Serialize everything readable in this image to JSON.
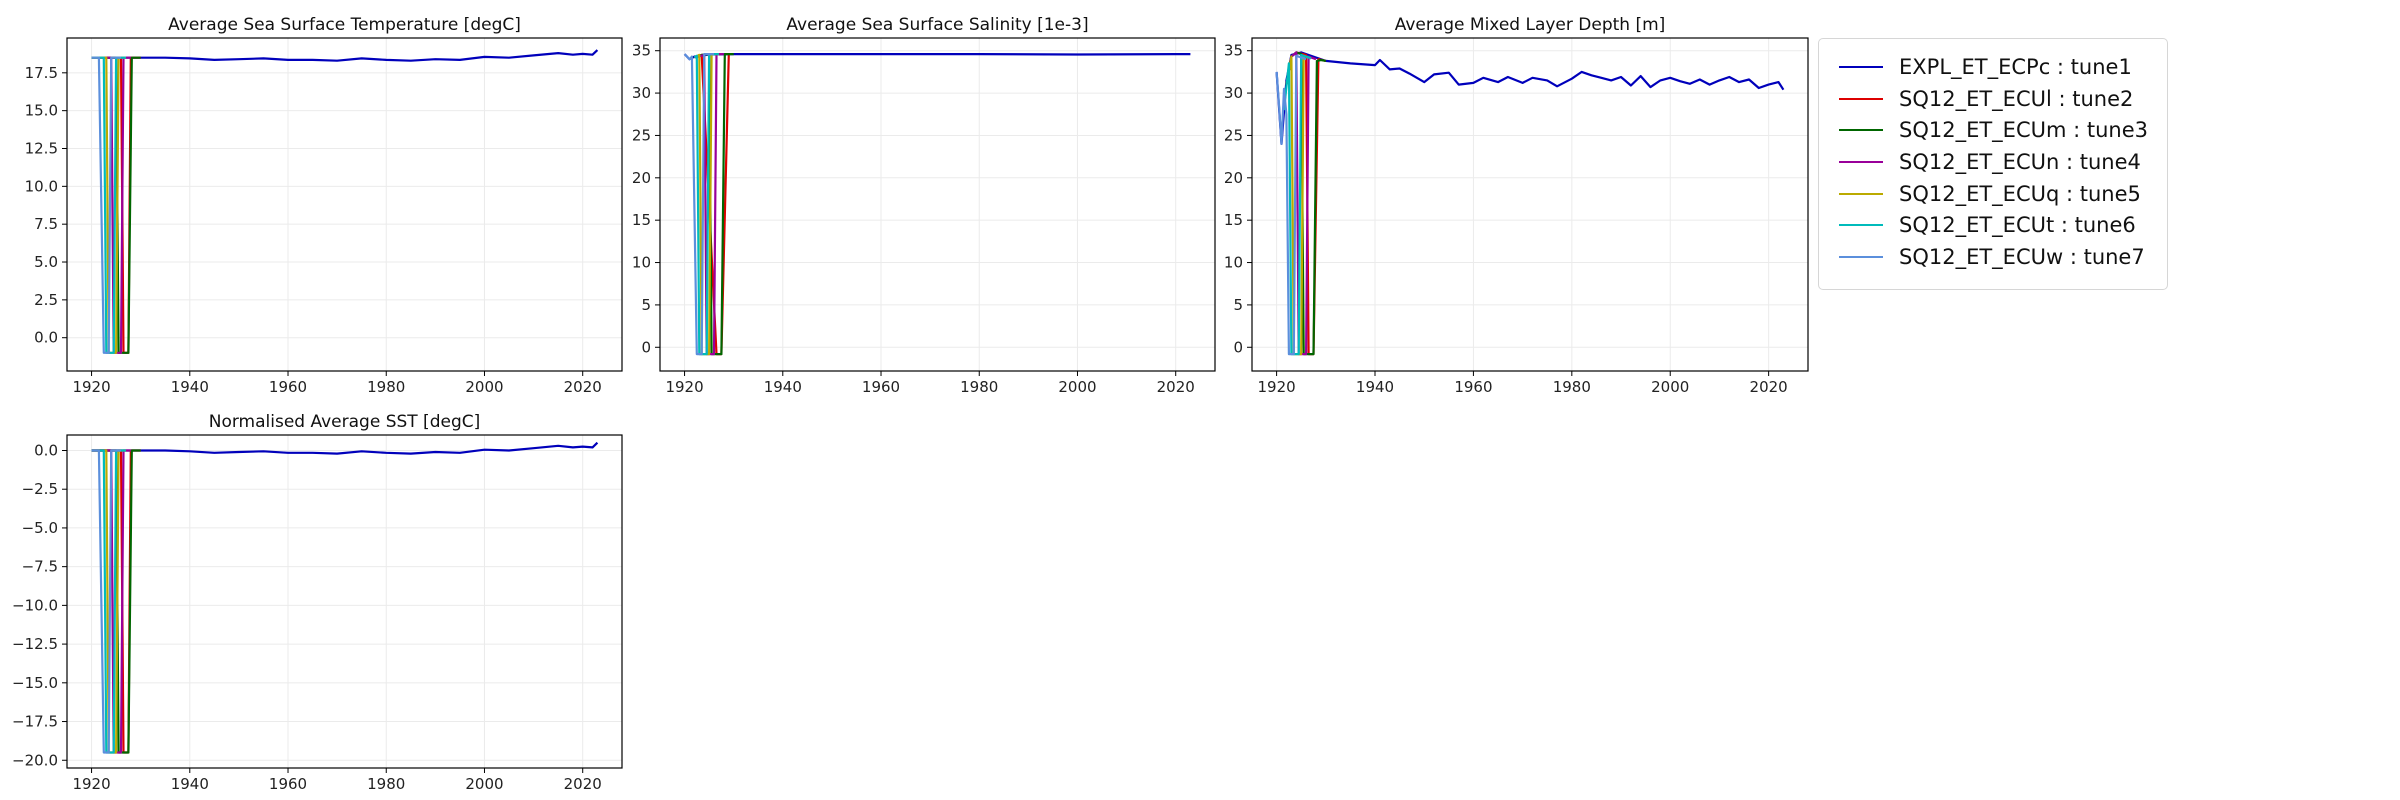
{
  "chart_data": [
    {
      "type": "line",
      "title": "Average Sea Surface Temperature [degC]",
      "xlabel": "",
      "ylabel": "",
      "xlim": [
        1915,
        2028
      ],
      "ylim": [
        -2.2,
        19.8
      ],
      "xticks": [
        1920,
        1940,
        1960,
        1980,
        2000,
        2020
      ],
      "yticks": [
        0.0,
        2.5,
        5.0,
        7.5,
        10.0,
        12.5,
        15.0,
        17.5
      ],
      "ytick_labels": [
        "0.0",
        "2.5",
        "5.0",
        "7.5",
        "10.0",
        "12.5",
        "15.0",
        "17.5"
      ],
      "grid": true,
      "series": [
        {
          "name": "EXPL_ET_ECPc : tune1",
          "color": "#0000bb",
          "x": [
            1920,
            1925,
            1930,
            1935,
            1940,
            1945,
            1950,
            1955,
            1960,
            1965,
            1970,
            1975,
            1980,
            1985,
            1990,
            1995,
            2000,
            2005,
            2010,
            2015,
            2018,
            2020,
            2022,
            2023
          ],
          "y": [
            18.5,
            18.5,
            18.5,
            18.5,
            18.45,
            18.35,
            18.4,
            18.45,
            18.35,
            18.35,
            18.3,
            18.45,
            18.35,
            18.3,
            18.4,
            18.35,
            18.55,
            18.5,
            18.65,
            18.8,
            18.7,
            18.75,
            18.7,
            19.0
          ]
        },
        {
          "name": "SQ12_ET_ECUl : tune2",
          "color": "#dd0000",
          "x": [
            1920,
            1926,
            1926.5,
            1927.5,
            1928,
            1930
          ],
          "y": [
            18.5,
            18.5,
            -1.0,
            -1.0,
            18.5,
            18.5
          ]
        },
        {
          "name": "SQ12_ET_ECUm : tune3",
          "color": "#006600",
          "x": [
            1920,
            1925,
            1925.5,
            1927.5,
            1928.2,
            1930
          ],
          "y": [
            18.5,
            18.5,
            -1.0,
            -1.0,
            18.5,
            18.5
          ]
        },
        {
          "name": "SQ12_ET_ECUn : tune4",
          "color": "#990099",
          "x": [
            1920,
            1924,
            1924.5,
            1926,
            1926.5,
            1928
          ],
          "y": [
            18.5,
            18.5,
            -1.0,
            -1.0,
            18.5,
            18.5
          ]
        },
        {
          "name": "SQ12_ET_ECUq : tune5",
          "color": "#bbaa00",
          "x": [
            1920,
            1923,
            1923.5,
            1925,
            1925.5,
            1927
          ],
          "y": [
            18.5,
            18.5,
            -1.0,
            -1.0,
            18.5,
            18.5
          ]
        },
        {
          "name": "SQ12_ET_ECUt : tune6",
          "color": "#00bbbb",
          "x": [
            1920,
            1922.5,
            1923,
            1924.5,
            1925,
            1927
          ],
          "y": [
            18.5,
            18.5,
            -1.0,
            -1.0,
            18.5,
            18.5
          ]
        },
        {
          "name": "SQ12_ET_ECUw : tune7",
          "color": "#5b8fdc",
          "x": [
            1920,
            1921.5,
            1922.5,
            1923.5,
            1924,
            1926
          ],
          "y": [
            18.5,
            18.5,
            -1.0,
            -1.0,
            18.5,
            18.5
          ]
        }
      ]
    },
    {
      "type": "line",
      "title": "Average Sea Surface Salinity [1e-3]",
      "xlabel": "",
      "ylabel": "",
      "xlim": [
        1915,
        2028
      ],
      "ylim": [
        -2.8,
        36.5
      ],
      "xticks": [
        1920,
        1940,
        1960,
        1980,
        2000,
        2020
      ],
      "yticks": [
        0,
        5,
        10,
        15,
        20,
        25,
        30,
        35
      ],
      "ytick_labels": [
        "0",
        "5",
        "10",
        "15",
        "20",
        "25",
        "30",
        "35"
      ],
      "grid": true,
      "series": [
        {
          "name": "EXPL_ET_ECPc : tune1",
          "color": "#0000bb",
          "x": [
            1920,
            1921,
            1922,
            1925,
            1930,
            1940,
            1960,
            1980,
            2000,
            2020,
            2023
          ],
          "y": [
            34.6,
            34.0,
            34.3,
            34.55,
            34.6,
            34.6,
            34.6,
            34.6,
            34.55,
            34.6,
            34.6
          ]
        },
        {
          "name": "SQ12_ET_ECUl : tune2",
          "color": "#dd0000",
          "x": [
            1922,
            1923.5,
            1926.5,
            1927.5,
            1929
          ],
          "y": [
            34.2,
            34.5,
            -0.8,
            -0.8,
            34.6
          ]
        },
        {
          "name": "SQ12_ET_ECUm : tune3",
          "color": "#006600",
          "x": [
            1922,
            1923.5,
            1925,
            1925.5,
            1927.5,
            1928.2,
            1930
          ],
          "y": [
            34.2,
            34.5,
            34.6,
            -0.8,
            -0.8,
            34.6,
            34.6
          ]
        },
        {
          "name": "SQ12_ET_ECUn : tune4",
          "color": "#990099",
          "x": [
            1922,
            1924,
            1924.5,
            1926,
            1926.5,
            1928
          ],
          "y": [
            34.2,
            34.5,
            -0.8,
            -0.8,
            34.6,
            34.6
          ]
        },
        {
          "name": "SQ12_ET_ECUq : tune5",
          "color": "#bbaa00",
          "x": [
            1922,
            1923,
            1923.5,
            1925,
            1925.5,
            1927
          ],
          "y": [
            34.2,
            34.5,
            -0.8,
            -0.8,
            34.6,
            34.6
          ]
        },
        {
          "name": "SQ12_ET_ECUt : tune6",
          "color": "#00bbbb",
          "x": [
            1922,
            1922.5,
            1923,
            1924.5,
            1925,
            1927
          ],
          "y": [
            34.2,
            34.4,
            -0.8,
            -0.8,
            34.6,
            34.6
          ]
        },
        {
          "name": "SQ12_ET_ECUw : tune7",
          "color": "#5b8fdc",
          "x": [
            1920,
            1921,
            1921.5,
            1922.5,
            1923.5,
            1924,
            1926
          ],
          "y": [
            34.6,
            34.0,
            34.3,
            -0.8,
            -0.8,
            34.6,
            34.6
          ]
        }
      ]
    },
    {
      "type": "line",
      "title": "Average Mixed Layer Depth [m]",
      "xlabel": "",
      "ylabel": "",
      "xlim": [
        1915,
        2028
      ],
      "ylim": [
        -2.8,
        36.5
      ],
      "xticks": [
        1920,
        1940,
        1960,
        1980,
        2000,
        2020
      ],
      "yticks": [
        0,
        5,
        10,
        15,
        20,
        25,
        30,
        35
      ],
      "ytick_labels": [
        "0",
        "5",
        "10",
        "15",
        "20",
        "25",
        "30",
        "35"
      ],
      "grid": true,
      "series": [
        {
          "name": "EXPL_ET_ECPc : tune1",
          "color": "#0000bb",
          "x": [
            1920,
            1921,
            1922,
            1923,
            1925,
            1930,
            1935,
            1940,
            1941,
            1943,
            1945,
            1947,
            1950,
            1952,
            1955,
            1957,
            1960,
            1962,
            1965,
            1967,
            1970,
            1972,
            1975,
            1977,
            1980,
            1982,
            1984,
            1986,
            1988,
            1990,
            1992,
            1994,
            1996,
            1998,
            2000,
            2002,
            2004,
            2006,
            2008,
            2010,
            2012,
            2014,
            2016,
            2018,
            2020,
            2022,
            2023
          ],
          "y": [
            32.5,
            24.0,
            31.5,
            34.5,
            34.8,
            33.8,
            33.5,
            33.3,
            33.9,
            32.8,
            32.9,
            32.3,
            31.3,
            32.2,
            32.4,
            31.0,
            31.2,
            31.8,
            31.3,
            31.9,
            31.2,
            31.8,
            31.5,
            30.8,
            31.7,
            32.5,
            32.1,
            31.8,
            31.5,
            31.9,
            30.9,
            32.0,
            30.7,
            31.5,
            31.8,
            31.4,
            31.1,
            31.6,
            31.0,
            31.5,
            31.9,
            31.3,
            31.6,
            30.6,
            31.0,
            31.3,
            30.4
          ]
        },
        {
          "name": "SQ12_ET_ECUl : tune2",
          "color": "#dd0000",
          "x": [
            1922,
            1923,
            1924,
            1926,
            1926.5,
            1927.5,
            1928.5,
            1930
          ],
          "y": [
            31.0,
            34.3,
            34.8,
            34.5,
            -0.8,
            -0.8,
            34.0,
            33.8
          ]
        },
        {
          "name": "SQ12_ET_ECUm : tune3",
          "color": "#006600",
          "x": [
            1922,
            1923,
            1924,
            1925,
            1925.5,
            1927.5,
            1928.2,
            1929,
            1930
          ],
          "y": [
            31.0,
            34.3,
            34.8,
            34.6,
            -0.8,
            -0.8,
            33.8,
            33.9,
            33.8
          ]
        },
        {
          "name": "SQ12_ET_ECUn : tune4",
          "color": "#990099",
          "x": [
            1922,
            1923,
            1924,
            1924.5,
            1926,
            1926.5,
            1928
          ],
          "y": [
            31.0,
            34.3,
            34.8,
            -0.8,
            -0.8,
            34.3,
            34.0
          ]
        },
        {
          "name": "SQ12_ET_ECUq : tune5",
          "color": "#bbaa00",
          "x": [
            1922,
            1923,
            1923.5,
            1925,
            1925.5,
            1927
          ],
          "y": [
            31.0,
            34.3,
            -0.8,
            -0.8,
            34.4,
            34.1
          ]
        },
        {
          "name": "SQ12_ET_ECUt : tune6",
          "color": "#00bbbb",
          "x": [
            1921.5,
            1922.5,
            1923,
            1924.5,
            1925,
            1927
          ],
          "y": [
            28.0,
            33.5,
            -0.8,
            -0.8,
            34.5,
            34.1
          ]
        },
        {
          "name": "SQ12_ET_ECUw : tune7",
          "color": "#5b8fdc",
          "x": [
            1920,
            1920.5,
            1921,
            1921.5,
            1922,
            1922.5,
            1923.5,
            1924,
            1926
          ],
          "y": [
            32.5,
            28.5,
            24.0,
            30.5,
            27.5,
            -0.8,
            -0.8,
            34.4,
            34.0
          ]
        }
      ]
    },
    {
      "type": "line",
      "title": "Normalised Average SST [degC]",
      "xlabel": "",
      "ylabel": "",
      "xlim": [
        1915,
        2028
      ],
      "ylim": [
        -20.5,
        1.0
      ],
      "xticks": [
        1920,
        1940,
        1960,
        1980,
        2000,
        2020
      ],
      "yticks": [
        0.0,
        -2.5,
        -5.0,
        -7.5,
        -10.0,
        -12.5,
        -15.0,
        -17.5,
        -20.0
      ],
      "ytick_labels": [
        "0.0",
        "−2.5",
        "−5.0",
        "−7.5",
        "−10.0",
        "−12.5",
        "−15.0",
        "−17.5",
        "−20.0"
      ],
      "grid": true,
      "series": [
        {
          "name": "EXPL_ET_ECPc : tune1",
          "color": "#0000bb",
          "x": [
            1920,
            1925,
            1930,
            1935,
            1940,
            1945,
            1950,
            1955,
            1960,
            1965,
            1970,
            1975,
            1980,
            1985,
            1990,
            1995,
            2000,
            2005,
            2010,
            2015,
            2018,
            2020,
            2022,
            2023
          ],
          "y": [
            0.0,
            0.0,
            0.0,
            0.0,
            -0.05,
            -0.15,
            -0.1,
            -0.05,
            -0.15,
            -0.15,
            -0.2,
            -0.05,
            -0.15,
            -0.2,
            -0.1,
            -0.15,
            0.05,
            0.0,
            0.15,
            0.3,
            0.2,
            0.25,
            0.2,
            0.5
          ]
        },
        {
          "name": "SQ12_ET_ECUl : tune2",
          "color": "#dd0000",
          "x": [
            1920,
            1926,
            1926.5,
            1927.5,
            1928,
            1930
          ],
          "y": [
            0.0,
            0.0,
            -19.5,
            -19.5,
            0.0,
            0.0
          ]
        },
        {
          "name": "SQ12_ET_ECUm : tune3",
          "color": "#006600",
          "x": [
            1920,
            1925,
            1925.5,
            1927.5,
            1928.2,
            1930
          ],
          "y": [
            0.0,
            0.0,
            -19.5,
            -19.5,
            0.0,
            0.0
          ]
        },
        {
          "name": "SQ12_ET_ECUn : tune4",
          "color": "#990099",
          "x": [
            1920,
            1924,
            1924.5,
            1926,
            1926.5,
            1928
          ],
          "y": [
            0.0,
            0.0,
            -19.5,
            -19.5,
            0.0,
            0.0
          ]
        },
        {
          "name": "SQ12_ET_ECUq : tune5",
          "color": "#bbaa00",
          "x": [
            1920,
            1923,
            1923.5,
            1925,
            1925.5,
            1927
          ],
          "y": [
            0.0,
            0.0,
            -19.5,
            -19.5,
            0.0,
            0.0
          ]
        },
        {
          "name": "SQ12_ET_ECUt : tune6",
          "color": "#00bbbb",
          "x": [
            1920,
            1922.5,
            1923,
            1924.5,
            1925,
            1927
          ],
          "y": [
            0.0,
            0.0,
            -19.5,
            -19.5,
            0.0,
            0.0
          ]
        },
        {
          "name": "SQ12_ET_ECUw : tune7",
          "color": "#5b8fdc",
          "x": [
            1920,
            1921.5,
            1922.5,
            1923.5,
            1924,
            1926
          ],
          "y": [
            0.0,
            0.0,
            -19.5,
            -19.5,
            0.0,
            0.0
          ]
        }
      ]
    }
  ],
  "legend": {
    "position": "right",
    "entries": [
      {
        "label": "EXPL_ET_ECPc : tune1",
        "color": "#0000bb"
      },
      {
        "label": "SQ12_ET_ECUl : tune2",
        "color": "#dd0000"
      },
      {
        "label": "SQ12_ET_ECUm : tune3",
        "color": "#006600"
      },
      {
        "label": "SQ12_ET_ECUn : tune4",
        "color": "#990099"
      },
      {
        "label": "SQ12_ET_ECUq : tune5",
        "color": "#bbaa00"
      },
      {
        "label": "SQ12_ET_ECUt : tune6",
        "color": "#00bbbb"
      },
      {
        "label": "SQ12_ET_ECUw : tune7",
        "color": "#5b8fdc"
      }
    ]
  }
}
